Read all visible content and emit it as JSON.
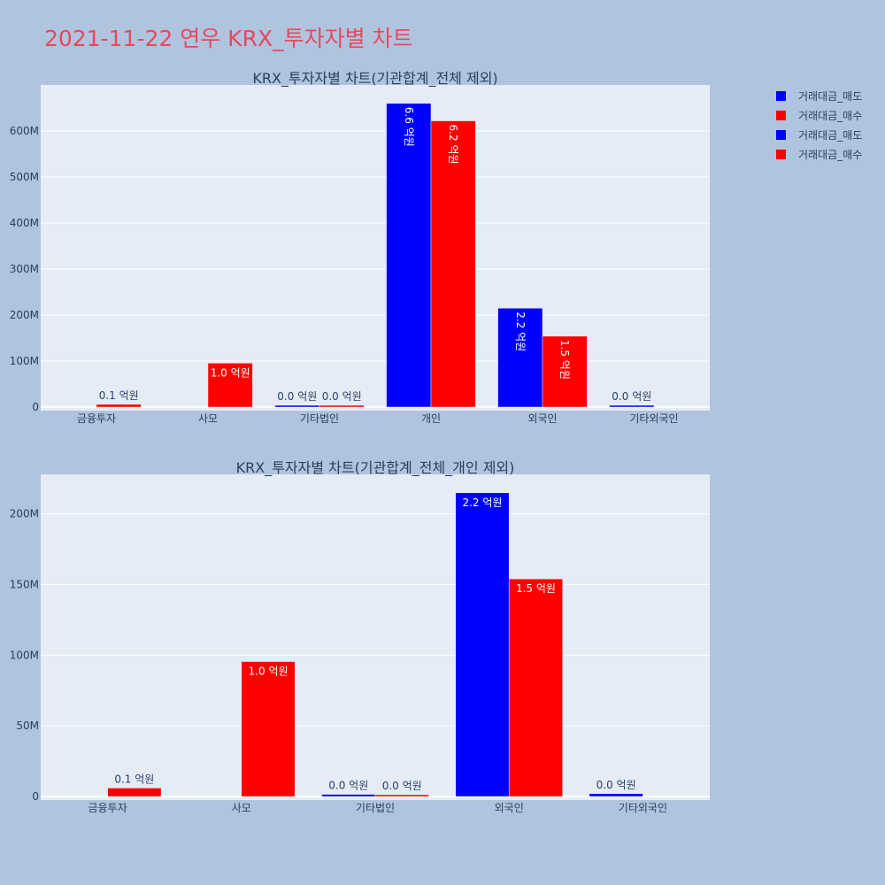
{
  "page_title": "2021-11-22 연우 KRX_투자자별 차트",
  "colors": {
    "sell": "#0000ff",
    "buy": "#ff0000",
    "title": "#e8485f",
    "background": "#b0c4de",
    "plot_bg": "#e5ecf6",
    "text": "#2a3f5f"
  },
  "legend": {
    "placement": "top-right",
    "items": [
      {
        "label": "거래대금_매도",
        "color": "#0000ff"
      },
      {
        "label": "거래대금_매수",
        "color": "#ff0000"
      },
      {
        "label": "거래대금_매도",
        "color": "#0000ff"
      },
      {
        "label": "거래대금_매수",
        "color": "#ff0000"
      }
    ]
  },
  "chart_data": [
    {
      "type": "bar",
      "title": "KRX_투자자별 차트(기관합계_전체 제외)",
      "categories": [
        "금융투자",
        "사모",
        "기타법인",
        "개인",
        "외국인",
        "기타외국인"
      ],
      "ylim": [
        0,
        700000000
      ],
      "y_ticks": [
        0,
        100000000,
        200000000,
        300000000,
        400000000,
        500000000,
        600000000
      ],
      "y_tick_labels": [
        "0",
        "100M",
        "200M",
        "300M",
        "400M",
        "500M",
        "600M"
      ],
      "grid": true,
      "label_orientation": "vertical",
      "series": [
        {
          "name": "거래대금_매도",
          "color": "#0000ff",
          "values": [
            0,
            0,
            1500000,
            660000000,
            215000000,
            2000000
          ],
          "labels": [
            "",
            "",
            "0.0 억원",
            "6.6 억원",
            "2.2 억원",
            "0.0 억원"
          ]
        },
        {
          "name": "거래대금_매수",
          "color": "#ff0000",
          "values": [
            6000000,
            95500000,
            1000000,
            622000000,
            154000000,
            0
          ],
          "labels": [
            "0.1 억원",
            "1.0 억원",
            "0.0 억원",
            "6.2 억원",
            "1.5 억원",
            ""
          ]
        }
      ]
    },
    {
      "type": "bar",
      "title": "KRX_투자자별 차트(기관합계_전체_개인 제외)",
      "categories": [
        "금융투자",
        "사모",
        "기타법인",
        "외국인",
        "기타외국인"
      ],
      "ylim": [
        0,
        228000000
      ],
      "y_ticks": [
        0,
        50000000,
        100000000,
        150000000,
        200000000
      ],
      "y_tick_labels": [
        "0",
        "50M",
        "100M",
        "150M",
        "200M"
      ],
      "grid": true,
      "label_orientation": "horizontal",
      "series": [
        {
          "name": "거래대금_매도",
          "color": "#0000ff",
          "values": [
            0,
            0,
            1500000,
            215000000,
            2000000
          ],
          "labels": [
            "",
            "",
            "0.0 억원",
            "2.2 억원",
            "0.0 억원"
          ]
        },
        {
          "name": "거래대금_매수",
          "color": "#ff0000",
          "values": [
            6000000,
            95500000,
            1000000,
            154000000,
            0
          ],
          "labels": [
            "0.1 억원",
            "1.0 억원",
            "0.0 억원",
            "1.5 억원",
            ""
          ]
        }
      ]
    }
  ]
}
